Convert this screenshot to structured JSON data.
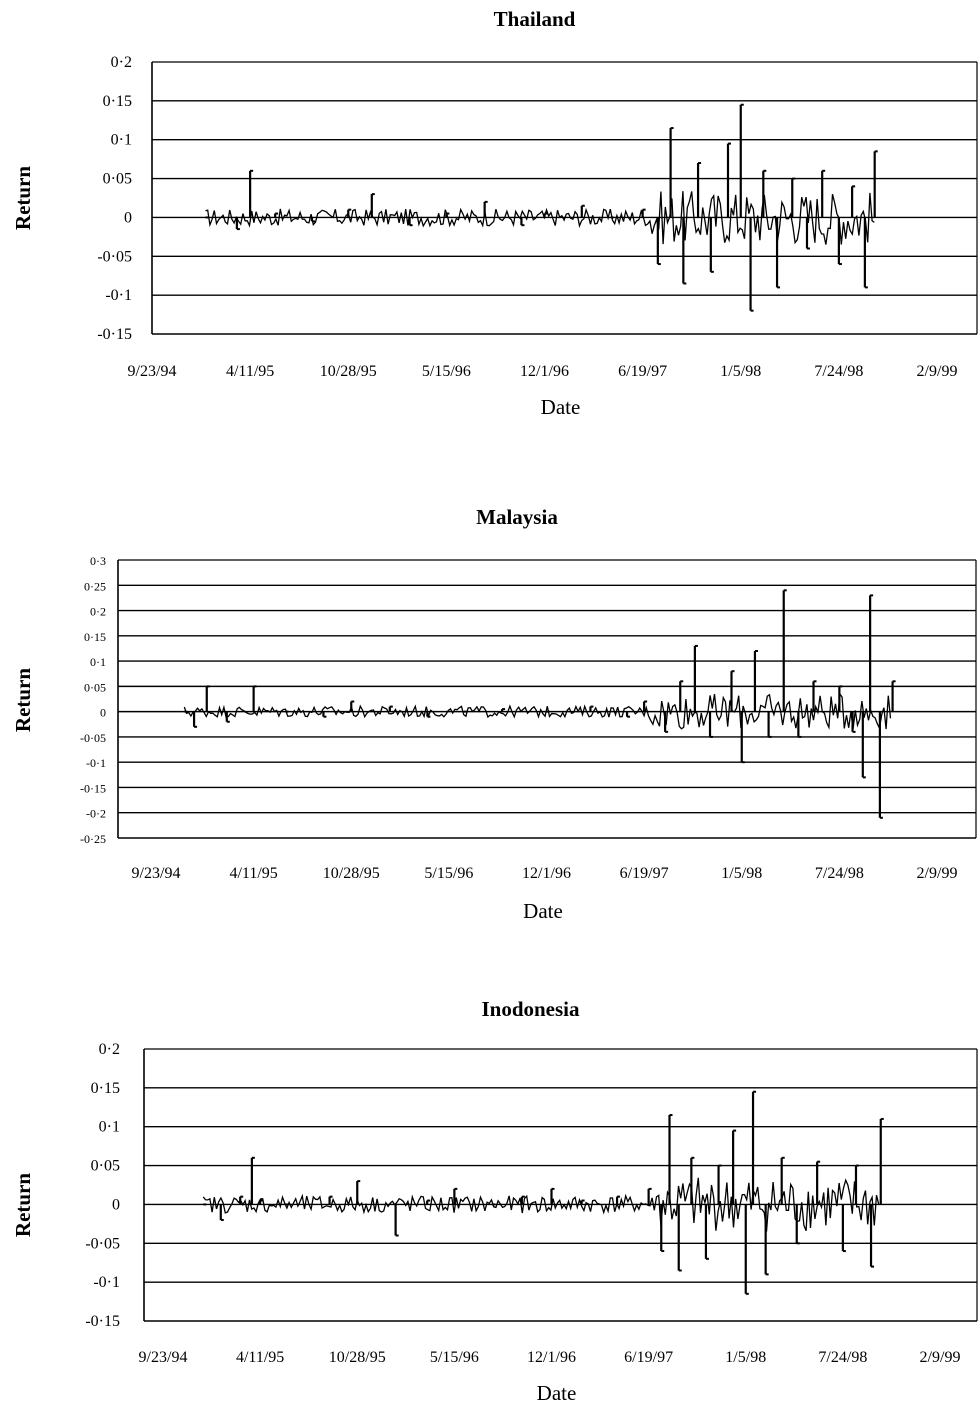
{
  "chart_data": [
    {
      "type": "line",
      "title": "Thailand",
      "xlabel": "Date",
      "ylabel": "Return",
      "ylim": [
        -0.15,
        0.2
      ],
      "grid": true,
      "legend": "none",
      "yticks": [
        "0·2",
        "0·15",
        "0·1",
        "0·05",
        "0",
        "-0·05",
        "-0·1",
        "-0·15"
      ],
      "xticks": [
        "9/23/94",
        "4/11/95",
        "10/28/95",
        "5/15/96",
        "12/1/96",
        "6/19/97",
        "1/5/98",
        "7/24/98",
        "2/9/99"
      ],
      "series": [
        {
          "x": [
            "1995-01-10",
            "1995-03-15",
            "1995-04-11",
            "1995-06-01",
            "1995-08-15",
            "1995-10-28",
            "1995-12-15",
            "1996-03-01",
            "1996-05-15",
            "1996-08-01",
            "1996-10-15",
            "1996-12-01",
            "1997-02-15",
            "1997-04-15",
            "1997-06-19",
            "1997-07-20",
            "1997-08-15",
            "1997-09-10",
            "1997-10-10",
            "1997-11-05",
            "1997-12-10",
            "1998-01-05",
            "1998-01-25",
            "1998-02-20",
            "1998-03-20",
            "1998-04-20",
            "1998-05-20",
            "1998-06-20",
            "1998-07-24",
            "1998-08-20",
            "1998-09-15",
            "1998-10-05"
          ],
          "values": [
            0.0,
            -0.015,
            0.06,
            0.005,
            -0.005,
            0.01,
            0.03,
            -0.01,
            0.005,
            0.02,
            -0.01,
            0.005,
            0.015,
            0.0,
            0.01,
            -0.06,
            0.115,
            -0.085,
            0.07,
            -0.07,
            0.095,
            0.145,
            -0.12,
            0.06,
            -0.09,
            0.05,
            -0.04,
            0.06,
            -0.06,
            0.04,
            -0.09,
            0.085
          ]
        }
      ]
    },
    {
      "type": "line",
      "title": "Malaysia",
      "xlabel": "Date",
      "ylabel": "Return",
      "ylim": [
        -0.25,
        0.3
      ],
      "grid": true,
      "legend": "none",
      "yticks": [
        "0·3",
        "0·25",
        "0·2",
        "0·15",
        "0·1",
        "0·05",
        "0",
        "-0·05",
        "-0·1",
        "-0·15",
        "-0·2",
        "-0·25"
      ],
      "xticks": [
        "9/23/94",
        "4/11/95",
        "10/28/95",
        "5/15/96",
        "12/1/96",
        "6/19/97",
        "1/5/98",
        "7/24/98",
        "2/9/99"
      ],
      "series": [
        {
          "x": [
            "1994-11-20",
            "1994-12-10",
            "1995-01-05",
            "1995-02-15",
            "1995-04-11",
            "1995-06-15",
            "1995-09-01",
            "1995-10-28",
            "1996-01-15",
            "1996-04-01",
            "1996-06-15",
            "1996-09-01",
            "1996-12-01",
            "1997-03-01",
            "1997-05-15",
            "1997-06-19",
            "1997-08-01",
            "1997-09-01",
            "1997-10-01",
            "1997-11-01",
            "1997-12-15",
            "1998-01-05",
            "1998-02-01",
            "1998-03-01",
            "1998-04-01",
            "1998-05-01",
            "1998-06-01",
            "1998-07-24",
            "1998-08-20",
            "1998-09-10",
            "1998-09-25",
            "1998-10-15",
            "1998-11-10"
          ],
          "values": [
            0.0,
            -0.03,
            0.05,
            -0.02,
            0.05,
            0.0,
            -0.01,
            0.02,
            0.01,
            -0.01,
            0.0,
            0.005,
            0.0,
            0.01,
            -0.01,
            0.02,
            -0.04,
            0.06,
            0.13,
            -0.05,
            0.08,
            -0.1,
            0.12,
            -0.05,
            0.24,
            -0.05,
            0.06,
            0.05,
            -0.04,
            -0.13,
            0.23,
            -0.21,
            0.06
          ]
        }
      ]
    },
    {
      "type": "line",
      "title": "Inodonesia",
      "xlabel": "Date",
      "ylabel": "Return",
      "ylim": [
        -0.15,
        0.2
      ],
      "grid": true,
      "legend": "none",
      "yticks": [
        "0·2",
        "0·15",
        "0·1",
        "0·05",
        "0",
        "-0·05",
        "-0·1",
        "-0·15"
      ],
      "xticks": [
        "9/23/94",
        "4/11/95",
        "10/28/95",
        "5/15/96",
        "12/1/96",
        "6/19/97",
        "1/5/98",
        "7/24/98",
        "2/9/99"
      ],
      "series": [
        {
          "x": [
            "1994-12-15",
            "1995-01-20",
            "1995-03-01",
            "1995-03-25",
            "1995-04-11",
            "1995-06-01",
            "1995-09-01",
            "1995-10-28",
            "1996-01-15",
            "1996-03-20",
            "1996-05-15",
            "1996-08-01",
            "1996-10-01",
            "1996-12-01",
            "1997-02-01",
            "1997-04-15",
            "1997-06-19",
            "1997-07-15",
            "1997-08-01",
            "1997-08-20",
            "1997-09-15",
            "1997-10-15",
            "1997-11-10",
            "1997-12-10",
            "1998-01-05",
            "1998-01-20",
            "1998-02-15",
            "1998-03-20",
            "1998-04-20",
            "1998-06-01",
            "1998-07-24",
            "1998-08-20",
            "1998-09-20",
            "1998-10-10"
          ],
          "values": [
            0.0,
            -0.02,
            0.01,
            0.06,
            0.005,
            0.0,
            0.01,
            0.03,
            -0.04,
            0.005,
            0.02,
            0.0,
            0.01,
            0.02,
            0.005,
            0.01,
            0.02,
            -0.06,
            0.115,
            -0.085,
            0.06,
            -0.07,
            0.05,
            0.095,
            -0.115,
            0.145,
            -0.09,
            0.06,
            -0.05,
            0.055,
            -0.06,
            0.05,
            -0.08,
            0.11
          ]
        }
      ]
    }
  ]
}
